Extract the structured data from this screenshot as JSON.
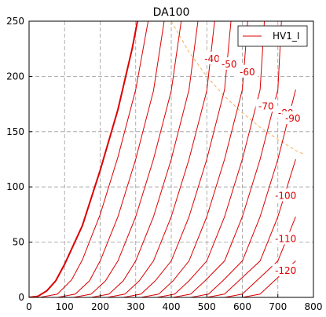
{
  "chart_data": {
    "type": "line",
    "title": "DA100",
    "xlabel": "",
    "ylabel": "",
    "xlim": [
      0,
      800
    ],
    "ylim": [
      0,
      250
    ],
    "xticks": [
      0,
      100,
      200,
      300,
      400,
      500,
      600,
      700,
      800
    ],
    "yticks": [
      0,
      50,
      100,
      150,
      200,
      250
    ],
    "grid": true,
    "legend": {
      "position": "top-right",
      "entries": [
        "HV1_I"
      ]
    },
    "colors": {
      "curves": "#dd0000",
      "dissipation": "#f0b060",
      "grid": "#999999"
    },
    "curve_label_color": "#dd0000",
    "series": [
      {
        "grid_v": "0",
        "points": [
          [
            0,
            0
          ],
          [
            25,
            1
          ],
          [
            50,
            6
          ],
          [
            75,
            15
          ],
          [
            100,
            30
          ],
          [
            150,
            65
          ],
          [
            200,
            115
          ],
          [
            250,
            170
          ],
          [
            290,
            225
          ],
          [
            305,
            250
          ]
        ]
      },
      {
        "grid_v": "-10",
        "points": [
          [
            30,
            0
          ],
          [
            80,
            3
          ],
          [
            120,
            16
          ],
          [
            150,
            34
          ],
          [
            200,
            75
          ],
          [
            250,
            127
          ],
          [
            300,
            188
          ],
          [
            335,
            250
          ]
        ]
      },
      {
        "grid_v": "-20",
        "points": [
          [
            80,
            0
          ],
          [
            130,
            3
          ],
          [
            170,
            15
          ],
          [
            200,
            33
          ],
          [
            250,
            73
          ],
          [
            300,
            125
          ],
          [
            350,
            187
          ],
          [
            380,
            250
          ]
        ]
      },
      {
        "grid_v": "-30",
        "points": [
          [
            125,
            0
          ],
          [
            175,
            3
          ],
          [
            215,
            15
          ],
          [
            250,
            33
          ],
          [
            300,
            73
          ],
          [
            350,
            125
          ],
          [
            400,
            187
          ],
          [
            428,
            250
          ]
        ]
      },
      {
        "grid_v": "-40",
        "points": [
          [
            175,
            0
          ],
          [
            225,
            3
          ],
          [
            265,
            15
          ],
          [
            300,
            33
          ],
          [
            350,
            73
          ],
          [
            400,
            125
          ],
          [
            450,
            188
          ],
          [
            475,
            250
          ]
        ]
      },
      {
        "grid_v": "-50",
        "points": [
          [
            220,
            0
          ],
          [
            270,
            3
          ],
          [
            310,
            15
          ],
          [
            350,
            33
          ],
          [
            400,
            73
          ],
          [
            450,
            125
          ],
          [
            500,
            187
          ],
          [
            522,
            250
          ]
        ]
      },
      {
        "grid_v": "-60",
        "points": [
          [
            265,
            0
          ],
          [
            315,
            3
          ],
          [
            355,
            15
          ],
          [
            400,
            33
          ],
          [
            450,
            73
          ],
          [
            500,
            125
          ],
          [
            550,
            188
          ],
          [
            568,
            250
          ]
        ]
      },
      {
        "grid_v": "-70",
        "points": [
          [
            315,
            0
          ],
          [
            365,
            3
          ],
          [
            405,
            15
          ],
          [
            450,
            33
          ],
          [
            500,
            73
          ],
          [
            550,
            125
          ],
          [
            600,
            188
          ],
          [
            615,
            250
          ]
        ]
      },
      {
        "grid_v": "-80",
        "points": [
          [
            360,
            0
          ],
          [
            410,
            3
          ],
          [
            450,
            15
          ],
          [
            500,
            33
          ],
          [
            550,
            73
          ],
          [
            600,
            125
          ],
          [
            650,
            188
          ],
          [
            662,
            250
          ]
        ]
      },
      {
        "grid_v": "-90",
        "points": [
          [
            405,
            0
          ],
          [
            455,
            3
          ],
          [
            495,
            15
          ],
          [
            550,
            33
          ],
          [
            600,
            73
          ],
          [
            650,
            125
          ],
          [
            700,
            188
          ],
          [
            710,
            250
          ]
        ]
      },
      {
        "grid_v": "-100",
        "points": [
          [
            455,
            0
          ],
          [
            505,
            3
          ],
          [
            545,
            15
          ],
          [
            600,
            33
          ],
          [
            650,
            73
          ],
          [
            700,
            125
          ],
          [
            750,
            188
          ]
        ]
      },
      {
        "grid_v": "-110",
        "points": [
          [
            500,
            0
          ],
          [
            550,
            3
          ],
          [
            590,
            15
          ],
          [
            650,
            33
          ],
          [
            700,
            73
          ],
          [
            750,
            125
          ]
        ]
      },
      {
        "grid_v": "-120",
        "points": [
          [
            550,
            0
          ],
          [
            600,
            3
          ],
          [
            640,
            15
          ],
          [
            700,
            33
          ],
          [
            750,
            73
          ]
        ]
      },
      {
        "grid_v": "-130",
        "points": [
          [
            600,
            0
          ],
          [
            650,
            3
          ],
          [
            690,
            15
          ],
          [
            750,
            33
          ]
        ]
      }
    ],
    "dissipation_curve": [
      [
        400,
        250
      ],
      [
        450,
        222
      ],
      [
        500,
        200
      ],
      [
        550,
        182
      ],
      [
        600,
        167
      ],
      [
        650,
        154
      ],
      [
        700,
        143
      ],
      [
        750,
        133
      ],
      [
        770,
        130
      ]
    ],
    "curve_labels": [
      {
        "text": "-40",
        "x": 515,
        "y": 216
      },
      {
        "text": "-50",
        "x": 563,
        "y": 211
      },
      {
        "text": "-60",
        "x": 614,
        "y": 204
      },
      {
        "text": "-70",
        "x": 667,
        "y": 173
      },
      {
        "text": "-80",
        "x": 722,
        "y": 167
      },
      {
        "text": "-90",
        "x": 742,
        "y": 162
      },
      {
        "text": "-100",
        "x": 722,
        "y": 92
      },
      {
        "text": "-110",
        "x": 722,
        "y": 53
      },
      {
        "text": "-120",
        "x": 722,
        "y": 24
      }
    ]
  }
}
